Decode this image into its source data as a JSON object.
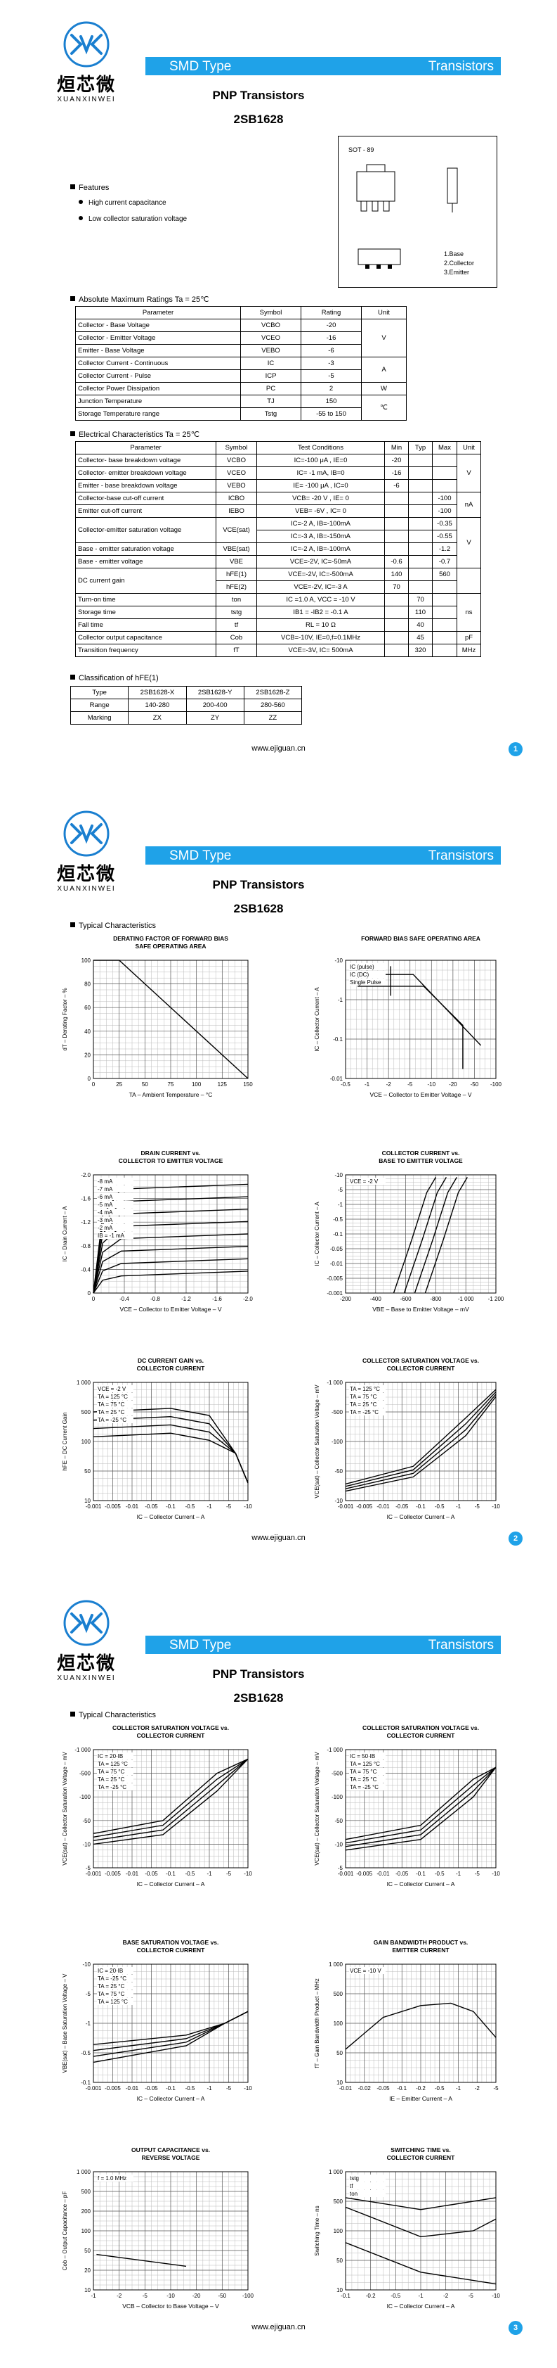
{
  "pages": [
    {
      "header": {
        "brand_cn": "烜芯微",
        "brand_en": "XUANXINWEI",
        "band_left": "SMD Type",
        "band_right": "Transistors",
        "title": "PNP Transistors",
        "part": "2SB1628"
      },
      "features": {
        "heading": "Features",
        "items": [
          "High current capacitance",
          "Low collector saturation voltage"
        ]
      },
      "package": {
        "name": "SOT - 89",
        "pins": [
          "1.Base",
          "2.Collector",
          "3.Emitter"
        ]
      },
      "abs_max": {
        "heading": "Absolute Maximum Ratings Ta = 25℃",
        "columns": [
          "Parameter",
          "Symbol",
          "Rating",
          "Unit"
        ],
        "rows": [
          {
            "parameter": "Collector - Base Voltage",
            "symbol": "VCBO",
            "rating": "-20",
            "unit": "V"
          },
          {
            "parameter": "Collector - Emitter Voltage",
            "symbol": "VCEO",
            "rating": "-16"
          },
          {
            "parameter": "Emitter - Base Voltage",
            "symbol": "VEBO",
            "rating": "-6"
          },
          {
            "parameter": "Collector Current - Continuous",
            "symbol": "IC",
            "rating": "-3",
            "unit": "A"
          },
          {
            "parameter": "Collector Current - Pulse",
            "symbol": "ICP",
            "rating": "-5"
          },
          {
            "parameter": "Collector Power Dissipation",
            "symbol": "PC",
            "rating": "2",
            "unit": "W"
          },
          {
            "parameter": "Junction Temperature",
            "symbol": "TJ",
            "rating": "150",
            "unit": "℃"
          },
          {
            "parameter": "Storage Temperature range",
            "symbol": "Tstg",
            "rating": "-55 to 150"
          }
        ]
      },
      "electrical": {
        "heading": "Electrical Characteristics Ta = 25℃",
        "columns": [
          "Parameter",
          "Symbol",
          "Test Conditions",
          "Min",
          "Typ",
          "Max",
          "Unit"
        ],
        "rows": [
          {
            "parameter": "Collector- base breakdown voltage",
            "symbol": "VCBO",
            "condition": "IC=-100 μA , IE=0",
            "min": "-20",
            "unit": "V"
          },
          {
            "parameter": "Collector- emitter breakdown voltage",
            "symbol": "VCEO",
            "condition": "IC= -1 mA, IB=0",
            "min": "-16"
          },
          {
            "parameter": "Emitter - base breakdown voltage",
            "symbol": "VEBO",
            "condition": "IE= -100 μA , IC=0",
            "min": "-6"
          },
          {
            "parameter": "Collector-base cut-off current",
            "symbol": "ICBO",
            "condition": "VCB= -20 V , IE= 0",
            "max": "-100",
            "unit": "nA"
          },
          {
            "parameter": "Emitter cut-off current",
            "symbol": "IEBO",
            "condition": "VEB= -6V , IC= 0",
            "max": "-100"
          },
          {
            "parameter": "Collector-emitter saturation voltage",
            "symbol": "VCE(sat)",
            "condition": "IC=-2 A, IB=-100mA",
            "max": "-0.35",
            "unit": "V"
          },
          {
            "condition": "IC=-3 A, IB=-150mA",
            "max": "-0.55"
          },
          {
            "parameter": "Base - emitter saturation voltage",
            "symbol": "VBE(sat)",
            "condition": "IC=-2 A, IB=-100mA",
            "max": "-1.2"
          },
          {
            "parameter": "Base - emitter voltage",
            "symbol": "VBE",
            "condition": "VCE=-2V, IC=-50mA",
            "min": "-0.6",
            "max": "-0.7"
          },
          {
            "parameter": "DC current gain",
            "symbol": "hFE(1)",
            "condition": "VCE=-2V, IC=-500mA",
            "min": "140",
            "max": "560"
          },
          {
            "symbol": "hFE(2)",
            "condition": "VCE=-2V, IC=-3 A",
            "min": "70"
          },
          {
            "parameter": "Turn-on time",
            "symbol": "ton",
            "condition": "IC =1.0 A, VCC = -10 V",
            "typ": "70",
            "unit": "ns"
          },
          {
            "parameter": "Storage time",
            "symbol": "tstg",
            "condition": "IB1 = -IB2 = -0.1 A",
            "typ": "110"
          },
          {
            "parameter": "Fall time",
            "symbol": "tf",
            "condition": "RL = 10 Ω",
            "typ": "40"
          },
          {
            "parameter": "Collector output capacitance",
            "symbol": "Cob",
            "condition": "VCB=-10V, IE=0,f=0.1MHz",
            "typ": "45",
            "unit": "pF"
          },
          {
            "parameter": "Transition frequency",
            "symbol": "fT",
            "condition": "VCE=-3V, IC= 500mA",
            "typ": "320",
            "unit": "MHz"
          }
        ]
      },
      "classification": {
        "heading": "Classification of hFE(1)",
        "rows": [
          [
            "Type",
            "2SB1628-X",
            "2SB1628-Y",
            "2SB1628-Z"
          ],
          [
            "Range",
            "140-280",
            "200-400",
            "280-560"
          ],
          [
            "Marking",
            "ZX",
            "ZY",
            "ZZ"
          ]
        ]
      },
      "footer": {
        "url": "www.ejiguan.cn",
        "page_number": "1"
      }
    },
    {
      "header": {
        "brand_cn": "烜芯微",
        "brand_en": "XUANXINWEI",
        "band_left": "SMD Type",
        "band_right": "Transistors",
        "title": "PNP Transistors",
        "part": "2SB1628"
      },
      "section": "Typical Characteristics",
      "charts": [
        {
          "title": [
            "DERATING FACTOR OF FORWARD BIAS",
            "SAFE OPERATING AREA"
          ],
          "y_label": "dT – Derating Factor – %",
          "x_label": "TA – Ambient Temperature – °C",
          "y_ticks": [
            "100",
            "80",
            "60",
            "40",
            "20",
            "0"
          ],
          "x_ticks": [
            "0",
            "25",
            "50",
            "75",
            "100",
            "125",
            "150"
          ],
          "notes": []
        },
        {
          "title": [
            "FORWARD BIAS SAFE OPERATING AREA"
          ],
          "y_label": "IC – Collector Current – A",
          "x_label": "VCE – Collector to Emitter Voltage – V",
          "y_ticks": [
            "-10",
            "-1",
            "-0.1",
            "-0.01"
          ],
          "x_ticks": [
            "-0.5",
            "-1",
            "-2",
            "-5",
            "-10",
            "-20",
            "-50",
            "-100"
          ],
          "notes": [
            "IC (pulse)",
            "IC (DC)",
            "Single Pulse"
          ]
        },
        {
          "title": [
            "DRAIN CURRENT vs.",
            "COLLECTOR TO EMITTER VOLTAGE"
          ],
          "y_label": "IC – Drain Current – A",
          "x_label": "VCE – Collector to Emitter Voltage – V",
          "y_ticks": [
            "-2.0",
            "-1.6",
            "-1.2",
            "-0.8",
            "-0.4",
            "0"
          ],
          "x_ticks": [
            "0",
            "-0.4",
            "-0.8",
            "-1.2",
            "-1.6",
            "-2.0"
          ],
          "notes": [
            "-8 mA",
            "-7 mA",
            "-6 mA",
            "-5 mA",
            "-4 mA",
            "-3 mA",
            "-2 mA",
            "IB = -1 mA"
          ]
        },
        {
          "title": [
            "COLLECTOR CURRENT vs.",
            "BASE TO EMITTER VOLTAGE"
          ],
          "y_label": "IC – Collector Current – A",
          "x_label": "VBE – Base to Emitter Voltage – mV",
          "y_ticks": [
            "-10",
            "-5",
            "-1",
            "-0.5",
            "-0.1",
            "-0.05",
            "-0.01",
            "-0.005",
            "-0.001"
          ],
          "x_ticks": [
            "-200",
            "-400",
            "-600",
            "-800",
            "-1 000",
            "-1 200"
          ],
          "notes": [
            "VCE = -2 V"
          ]
        },
        {
          "title": [
            "DC CURRENT GAIN vs.",
            "COLLECTOR CURRENT"
          ],
          "y_label": "hFE – DC Current Gain",
          "x_label": "IC – Collector Current – A",
          "y_ticks": [
            "1 000",
            "500",
            "100",
            "50",
            "10"
          ],
          "x_ticks": [
            "-0.001",
            "-0.005",
            "-0.01",
            "-0.05",
            "-0.1",
            "-0.5",
            "-1",
            "-5",
            "-10"
          ],
          "notes": [
            "VCE = -2 V",
            "TA = 125 °C",
            "TA = 75 °C",
            "TA = 25 °C",
            "TA = -25 °C"
          ]
        },
        {
          "title": [
            "COLLECTOR SATURATION VOLTAGE vs.",
            "COLLECTOR CURRENT"
          ],
          "y_label": "VCE(sat) – Collector Saturation Voltage – mV",
          "x_label": "IC – Collector Current – A",
          "y_ticks": [
            "-1 000",
            "-500",
            "-100",
            "-50",
            "-10"
          ],
          "x_ticks": [
            "-0.001",
            "-0.005",
            "-0.01",
            "-0.05",
            "-0.1",
            "-0.5",
            "-1",
            "-5",
            "-10"
          ],
          "notes": [
            "TA = 125 °C",
            "TA = 75 °C",
            "TA = 25 °C",
            "TA = -25 °C"
          ]
        }
      ],
      "footer": {
        "url": "www.ejiguan.cn",
        "page_number": "2"
      }
    },
    {
      "header": {
        "brand_cn": "烜芯微",
        "brand_en": "XUANXINWEI",
        "band_left": "SMD Type",
        "band_right": "Transistors",
        "title": "PNP Transistors",
        "part": "2SB1628"
      },
      "section": "Typical Characteristics",
      "charts": [
        {
          "title": [
            "COLLECTOR SATURATION VOLTAGE vs.",
            "COLLECTOR CURRENT"
          ],
          "y_label": "VCE(sat) – Collector Saturation Voltage – mV",
          "x_label": "IC – Collector Current – A",
          "y_ticks": [
            "-1 000",
            "-500",
            "-100",
            "-50",
            "-10",
            "-5"
          ],
          "x_ticks": [
            "-0.001",
            "-0.005",
            "-0.01",
            "-0.05",
            "-0.1",
            "-0.5",
            "-1",
            "-5",
            "-10"
          ],
          "notes": [
            "IC = 20·IB",
            "TA = 125 °C",
            "TA = 75 °C",
            "TA = 25 °C",
            "TA = -25 °C"
          ]
        },
        {
          "title": [
            "COLLECTOR SATURATION VOLTAGE vs.",
            "COLLECTOR CURRENT"
          ],
          "y_label": "VCE(sat) – Collector Saturation Voltage – mV",
          "x_label": "IC – Collector Current – A",
          "y_ticks": [
            "-1 000",
            "-500",
            "-100",
            "-50",
            "-10",
            "-5"
          ],
          "x_ticks": [
            "-0.001",
            "-0.005",
            "-0.01",
            "-0.05",
            "-0.1",
            "-0.5",
            "-1",
            "-5",
            "-10"
          ],
          "notes": [
            "IC = 50·IB",
            "TA = 125 °C",
            "TA = 75 °C",
            "TA = 25 °C",
            "TA = -25 °C"
          ]
        },
        {
          "title": [
            "BASE SATURATION VOLTAGE vs.",
            "COLLECTOR CURRENT"
          ],
          "y_label": "VBE(sat) – Base Saturation Voltage – V",
          "x_label": "IC – Collector Current – A",
          "y_ticks": [
            "-10",
            "-5",
            "-1",
            "-0.5",
            "-0.1"
          ],
          "x_ticks": [
            "-0.001",
            "-0.005",
            "-0.01",
            "-0.05",
            "-0.1",
            "-0.5",
            "-1",
            "-5",
            "-10"
          ],
          "notes": [
            "IC = 20·IB",
            "TA = -25 °C",
            "TA = 25 °C",
            "TA = 75 °C",
            "TA = 125 °C"
          ]
        },
        {
          "title": [
            "GAIN BANDWIDTH PRODUCT vs.",
            "EMITTER CURRENT"
          ],
          "y_label": "fT – Gain Bandwidth Product – MHz",
          "x_label": "IE – Emitter Current – A",
          "y_ticks": [
            "1 000",
            "500",
            "100",
            "50",
            "10"
          ],
          "x_ticks": [
            "-0.01",
            "-0.02",
            "-0.05",
            "-0.1",
            "-0.2",
            "-0.5",
            "-1",
            "-2",
            "-5"
          ],
          "notes": [
            "VCE = -10 V"
          ]
        },
        {
          "title": [
            "OUTPUT CAPACITANCE vs.",
            "REVERSE VOLTAGE"
          ],
          "y_label": "Cob – Output Capacitance – pF",
          "x_label": "VCB – Collector to Base Voltage – V",
          "y_ticks": [
            "1 000",
            "500",
            "200",
            "100",
            "50",
            "20",
            "10"
          ],
          "x_ticks": [
            "-1",
            "-2",
            "-5",
            "-10",
            "-20",
            "-50",
            "-100"
          ],
          "notes": [
            "f = 1.0 MHz"
          ]
        },
        {
          "title": [
            "SWITCHING TIME vs.",
            "COLLECTOR CURRENT"
          ],
          "y_label": "Switching Time – ns",
          "x_label": "IC – Collector Current – A",
          "y_ticks": [
            "1 000",
            "500",
            "100",
            "50",
            "10"
          ],
          "x_ticks": [
            "-0.1",
            "-0.2",
            "-0.5",
            "-1",
            "-2",
            "-5",
            "-10"
          ],
          "notes": [
            "tstg",
            "tf",
            "ton"
          ]
        }
      ],
      "footer": {
        "url": "www.ejiguan.cn",
        "page_number": "3"
      }
    }
  ]
}
